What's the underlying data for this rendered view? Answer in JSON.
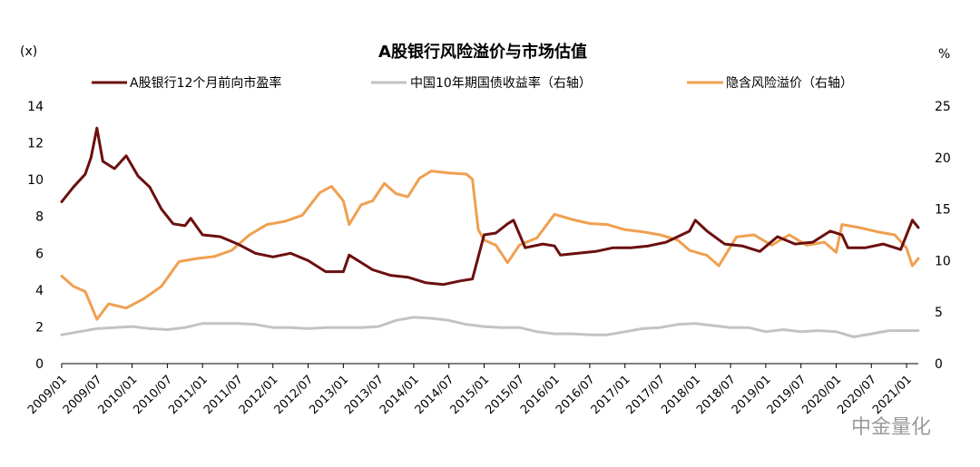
{
  "chart_data": {
    "type": "line",
    "title": "A股银行风险溢价与市场估值",
    "left_unit": "(x)",
    "right_unit": "%",
    "ylim_left": [
      0,
      14
    ],
    "ylim_right": [
      0,
      25
    ],
    "left_ticks": [
      "0",
      "2",
      "4",
      "6",
      "8",
      "10",
      "12",
      "14"
    ],
    "right_ticks": [
      "0",
      "5",
      "10",
      "15",
      "20",
      "25"
    ],
    "x_ticks": [
      "2009/01",
      "2009/07",
      "2010/01",
      "2010/07",
      "2011/01",
      "2011/07",
      "2012/01",
      "2012/07",
      "2013/01",
      "2013/07",
      "2014/01",
      "2014/07",
      "2015/01",
      "2015/07",
      "2016/01",
      "2016/07",
      "2017/01",
      "2017/07",
      "2018/01",
      "2018/07",
      "2019/01",
      "2019/07",
      "2020/01",
      "2020/07",
      "2021/01"
    ],
    "legend_position": "top",
    "grid": false,
    "watermark": "中金量化",
    "series": [
      {
        "name": "A股银行12个月前向市盈率",
        "axis": "left",
        "color": "#6b0f0f",
        "points": [
          [
            "2009/01",
            8.8
          ],
          [
            "2009/03",
            9.6
          ],
          [
            "2009/05",
            10.3
          ],
          [
            "2009/06",
            11.2
          ],
          [
            "2009/07",
            12.8
          ],
          [
            "2009/08",
            11.0
          ],
          [
            "2009/10",
            10.6
          ],
          [
            "2009/12",
            11.3
          ],
          [
            "2010/02",
            10.2
          ],
          [
            "2010/04",
            9.6
          ],
          [
            "2010/06",
            8.4
          ],
          [
            "2010/08",
            7.6
          ],
          [
            "2010/10",
            7.5
          ],
          [
            "2010/11",
            7.9
          ],
          [
            "2011/01",
            7.0
          ],
          [
            "2011/04",
            6.9
          ],
          [
            "2011/07",
            6.5
          ],
          [
            "2011/10",
            6.0
          ],
          [
            "2012/01",
            5.8
          ],
          [
            "2012/04",
            6.0
          ],
          [
            "2012/07",
            5.6
          ],
          [
            "2012/10",
            5.0
          ],
          [
            "2013/01",
            5.0
          ],
          [
            "2013/02",
            5.9
          ],
          [
            "2013/04",
            5.5
          ],
          [
            "2013/06",
            5.1
          ],
          [
            "2013/09",
            4.8
          ],
          [
            "2013/12",
            4.7
          ],
          [
            "2014/03",
            4.4
          ],
          [
            "2014/06",
            4.3
          ],
          [
            "2014/09",
            4.5
          ],
          [
            "2014/11",
            4.6
          ],
          [
            "2014/12",
            5.8
          ],
          [
            "2015/01",
            7.0
          ],
          [
            "2015/03",
            7.1
          ],
          [
            "2015/05",
            7.6
          ],
          [
            "2015/06",
            7.8
          ],
          [
            "2015/08",
            6.3
          ],
          [
            "2015/11",
            6.5
          ],
          [
            "2016/01",
            6.4
          ],
          [
            "2016/02",
            5.9
          ],
          [
            "2016/05",
            6.0
          ],
          [
            "2016/08",
            6.1
          ],
          [
            "2016/11",
            6.3
          ],
          [
            "2017/02",
            6.3
          ],
          [
            "2017/05",
            6.4
          ],
          [
            "2017/08",
            6.6
          ],
          [
            "2017/10",
            6.9
          ],
          [
            "2017/12",
            7.2
          ],
          [
            "2018/01",
            7.8
          ],
          [
            "2018/03",
            7.2
          ],
          [
            "2018/06",
            6.5
          ],
          [
            "2018/09",
            6.4
          ],
          [
            "2018/12",
            6.1
          ],
          [
            "2019/03",
            6.9
          ],
          [
            "2019/06",
            6.5
          ],
          [
            "2019/09",
            6.6
          ],
          [
            "2019/12",
            7.2
          ],
          [
            "2020/02",
            7.0
          ],
          [
            "2020/03",
            6.3
          ],
          [
            "2020/06",
            6.3
          ],
          [
            "2020/09",
            6.5
          ],
          [
            "2020/12",
            6.2
          ],
          [
            "2021/01",
            7.0
          ],
          [
            "2021/02",
            7.8
          ],
          [
            "2021/03",
            7.4
          ]
        ]
      },
      {
        "name": "中国10年期国债收益率（右轴）",
        "axis": "right",
        "color": "#c3c3c3",
        "points": [
          [
            "2009/01",
            2.8
          ],
          [
            "2009/04",
            3.1
          ],
          [
            "2009/07",
            3.4
          ],
          [
            "2009/10",
            3.5
          ],
          [
            "2010/01",
            3.6
          ],
          [
            "2010/04",
            3.4
          ],
          [
            "2010/07",
            3.3
          ],
          [
            "2010/10",
            3.5
          ],
          [
            "2011/01",
            3.9
          ],
          [
            "2011/04",
            3.9
          ],
          [
            "2011/07",
            3.9
          ],
          [
            "2011/10",
            3.8
          ],
          [
            "2012/01",
            3.5
          ],
          [
            "2012/04",
            3.5
          ],
          [
            "2012/07",
            3.4
          ],
          [
            "2012/10",
            3.5
          ],
          [
            "2013/01",
            3.5
          ],
          [
            "2013/04",
            3.5
          ],
          [
            "2013/07",
            3.6
          ],
          [
            "2013/10",
            4.2
          ],
          [
            "2014/01",
            4.5
          ],
          [
            "2014/04",
            4.4
          ],
          [
            "2014/07",
            4.2
          ],
          [
            "2014/10",
            3.8
          ],
          [
            "2015/01",
            3.6
          ],
          [
            "2015/04",
            3.5
          ],
          [
            "2015/07",
            3.5
          ],
          [
            "2015/10",
            3.1
          ],
          [
            "2016/01",
            2.9
          ],
          [
            "2016/04",
            2.9
          ],
          [
            "2016/07",
            2.8
          ],
          [
            "2016/10",
            2.8
          ],
          [
            "2017/01",
            3.1
          ],
          [
            "2017/04",
            3.4
          ],
          [
            "2017/07",
            3.5
          ],
          [
            "2017/10",
            3.8
          ],
          [
            "2018/01",
            3.9
          ],
          [
            "2018/04",
            3.7
          ],
          [
            "2018/07",
            3.5
          ],
          [
            "2018/10",
            3.5
          ],
          [
            "2019/01",
            3.1
          ],
          [
            "2019/04",
            3.3
          ],
          [
            "2019/07",
            3.1
          ],
          [
            "2019/10",
            3.2
          ],
          [
            "2020/01",
            3.1
          ],
          [
            "2020/04",
            2.6
          ],
          [
            "2020/07",
            2.9
          ],
          [
            "2020/10",
            3.2
          ],
          [
            "2021/01",
            3.2
          ],
          [
            "2021/03",
            3.2
          ]
        ]
      },
      {
        "name": "隐含风险溢价（右轴）",
        "axis": "right",
        "color": "#f0a050",
        "points": [
          [
            "2009/01",
            8.5
          ],
          [
            "2009/03",
            7.5
          ],
          [
            "2009/05",
            7.0
          ],
          [
            "2009/07",
            4.3
          ],
          [
            "2009/09",
            5.8
          ],
          [
            "2009/12",
            5.4
          ],
          [
            "2010/03",
            6.3
          ],
          [
            "2010/06",
            7.5
          ],
          [
            "2010/09",
            9.9
          ],
          [
            "2010/12",
            10.2
          ],
          [
            "2011/03",
            10.4
          ],
          [
            "2011/06",
            11.0
          ],
          [
            "2011/09",
            12.5
          ],
          [
            "2011/12",
            13.5
          ],
          [
            "2012/03",
            13.8
          ],
          [
            "2012/06",
            14.4
          ],
          [
            "2012/09",
            16.6
          ],
          [
            "2012/11",
            17.2
          ],
          [
            "2013/01",
            15.8
          ],
          [
            "2013/02",
            13.5
          ],
          [
            "2013/04",
            15.4
          ],
          [
            "2013/06",
            15.8
          ],
          [
            "2013/08",
            17.5
          ],
          [
            "2013/10",
            16.5
          ],
          [
            "2013/12",
            16.2
          ],
          [
            "2014/02",
            18.0
          ],
          [
            "2014/04",
            18.7
          ],
          [
            "2014/07",
            18.5
          ],
          [
            "2014/10",
            18.4
          ],
          [
            "2014/11",
            17.9
          ],
          [
            "2014/12",
            13.0
          ],
          [
            "2015/01",
            12.0
          ],
          [
            "2015/03",
            11.5
          ],
          [
            "2015/05",
            9.8
          ],
          [
            "2015/07",
            11.5
          ],
          [
            "2015/10",
            12.2
          ],
          [
            "2016/01",
            14.5
          ],
          [
            "2016/04",
            14.0
          ],
          [
            "2016/07",
            13.6
          ],
          [
            "2016/10",
            13.5
          ],
          [
            "2017/01",
            13.0
          ],
          [
            "2017/04",
            12.8
          ],
          [
            "2017/07",
            12.5
          ],
          [
            "2017/10",
            12.0
          ],
          [
            "2017/12",
            11.0
          ],
          [
            "2018/03",
            10.5
          ],
          [
            "2018/05",
            9.5
          ],
          [
            "2018/08",
            12.3
          ],
          [
            "2018/11",
            12.5
          ],
          [
            "2019/02",
            11.5
          ],
          [
            "2019/05",
            12.5
          ],
          [
            "2019/08",
            11.5
          ],
          [
            "2019/11",
            11.8
          ],
          [
            "2020/01",
            10.8
          ],
          [
            "2020/02",
            13.5
          ],
          [
            "2020/05",
            13.2
          ],
          [
            "2020/08",
            12.8
          ],
          [
            "2020/11",
            12.5
          ],
          [
            "2021/01",
            11.2
          ],
          [
            "2021/02",
            9.5
          ],
          [
            "2021/03",
            10.2
          ]
        ]
      }
    ]
  }
}
